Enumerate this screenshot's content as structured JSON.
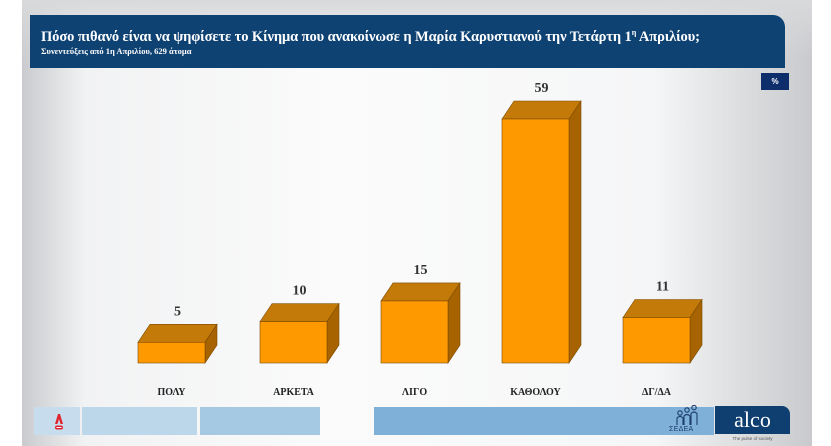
{
  "header": {
    "title": "Πόσο πιθανό είναι να ψηφίσετε το Κίνημα που ανακοίνωσε η Μαρία Καρυστιανού την Τετάρτη 1",
    "title_sup": "η",
    "title_end": " Απριλίου;",
    "subtitle": "Συνεντεύξεις από 1η Απριλίου, 629 άτομα"
  },
  "unit_badge": "%",
  "footer": {
    "logos": [
      "alpha-tv-icon",
      "sedea-icon",
      "alco-logo"
    ],
    "sedea_label": "ΣΕΔΕΑ",
    "alco_label": "alco",
    "alco_tagline": "The pulse of society"
  },
  "colors": {
    "header_bg": "#0e4273",
    "badge_bg": "#0d2d6b",
    "bar_front": "#ff9900",
    "bar_top": "#c47a08",
    "bar_side": "#a66300",
    "bar_outline": "#7a4a00"
  },
  "chart_data": {
    "type": "bar",
    "title": "Πόσο πιθανό είναι να ψηφίσετε το Κίνημα που ανακοίνωσε η Μαρία Καρυστιανού την Τετάρτη 1η Απριλίου;",
    "subtitle": "Συνεντεύξεις από 1η Απριλίου, 629 άτομα",
    "categories": [
      "ΠΟΛΥ",
      "ΑΡΚΕΤΑ",
      "ΛΙΓΟ",
      "ΚΑΘΟΛΟΥ",
      "ΔΓ/ΔΑ"
    ],
    "values": [
      5,
      10,
      15,
      59,
      11
    ],
    "value_labels": [
      "5",
      "10",
      "15",
      "59",
      "11"
    ],
    "unit": "%",
    "xlabel": "",
    "ylabel": "",
    "ylim": [
      0,
      60
    ],
    "grid": false,
    "legend": "none",
    "style": "3d-column"
  }
}
